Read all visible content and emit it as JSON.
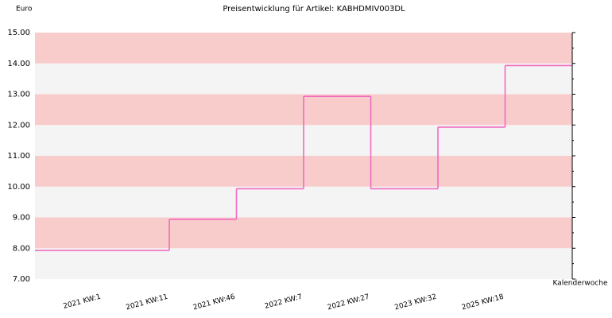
{
  "chart_data": {
    "type": "step",
    "title": "Preisentwicklung für Artikel: KABHDMIV003DL",
    "y_label": "Euro",
    "x_label": "Kalenderwoche",
    "categories": [
      null,
      "2021 KW:1",
      "2021 KW:11",
      "2021 KW:46",
      "2022 KW:7",
      "2022 KW:27",
      "2023 KW:32",
      "2025 KW:18"
    ],
    "values": [
      7.93,
      7.93,
      8.94,
      9.93,
      12.93,
      9.93,
      11.93,
      13.93
    ],
    "color": "#f06ac0",
    "band_colors": [
      "#f9cccc",
      "#f4f4f4"
    ],
    "ylim": [
      7,
      15
    ],
    "yticks": [
      {
        "value": 7,
        "label": "7.00"
      },
      {
        "value": 8,
        "label": "8.00"
      },
      {
        "value": 9,
        "label": "9.00"
      },
      {
        "value": 10,
        "label": "10.00"
      },
      {
        "value": 11,
        "label": "11.00"
      },
      {
        "value": 12,
        "label": "12.00"
      },
      {
        "value": 13,
        "label": "13.00"
      },
      {
        "value": 14,
        "label": "14.00"
      },
      {
        "value": 15,
        "label": "15.00"
      }
    ]
  }
}
